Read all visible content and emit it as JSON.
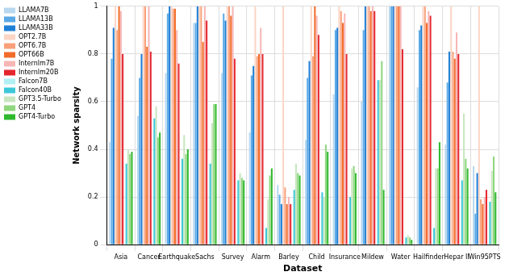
{
  "chart_data": {
    "type": "bar",
    "x_label": "Dataset",
    "y_label": "Network sparsity",
    "categories": [
      "Asia",
      "Cancer",
      "Earthquake",
      "Sachs",
      "Survey",
      "Alarm",
      "Barley",
      "Child",
      "Insurance",
      "Mildew",
      "Water",
      "Hailfinder",
      "Hepar II",
      "Win95PTS"
    ],
    "series": [
      {
        "name": "LLAMA7B",
        "color": "#b8d8f0",
        "values": [
          0.43,
          0.54,
          0.72,
          0.93,
          0.72,
          0.47,
          0.25,
          0.44,
          0.63,
          0.6,
          1.0,
          0.66,
          0.42,
          0.33
        ]
      },
      {
        "name": "LLAMA13B",
        "color": "#5aa9e6",
        "values": [
          0.78,
          0.7,
          0.97,
          0.93,
          0.97,
          0.71,
          0.21,
          0.7,
          0.9,
          0.9,
          1.0,
          0.9,
          0.68,
          0.13
        ]
      },
      {
        "name": "LLAMA33B",
        "color": "#1f7fd6",
        "values": [
          0.91,
          0.8,
          1.0,
          1.0,
          0.94,
          0.75,
          0.17,
          0.77,
          0.91,
          1.0,
          1.0,
          0.92,
          0.81,
          0.3
        ]
      },
      {
        "name": "OPT2.7B",
        "color": "#fcd5c5",
        "values": [
          1.0,
          1.0,
          1.0,
          1.0,
          1.0,
          1.0,
          1.0,
          1.0,
          1.0,
          1.0,
          1.0,
          1.0,
          1.0,
          1.0
        ]
      },
      {
        "name": "OPT6.7B",
        "color": "#f9a07a",
        "values": [
          0.9,
          1.0,
          0.99,
          1.0,
          1.0,
          0.79,
          0.24,
          0.79,
          0.98,
          1.0,
          1.0,
          1.0,
          0.81,
          0.19
        ]
      },
      {
        "name": "OPT66B",
        "color": "#f26b2a",
        "values": [
          1.0,
          0.83,
          0.99,
          0.85,
          0.96,
          0.8,
          0.17,
          1.0,
          0.93,
          0.98,
          1.0,
          0.93,
          0.78,
          0.17
        ]
      },
      {
        "name": "Internlm7B",
        "color": "#f7b6b6",
        "values": [
          0.98,
          1.0,
          0.9,
          1.0,
          1.0,
          0.91,
          0.2,
          0.96,
          0.97,
          1.0,
          1.0,
          0.98,
          0.89,
          0.2
        ]
      },
      {
        "name": "Internlm20B",
        "color": "#e4262e",
        "values": [
          0.8,
          0.81,
          0.76,
          0.94,
          0.78,
          0.8,
          0.17,
          0.88,
          0.8,
          0.98,
          0.82,
          0.96,
          0.8,
          0.23
        ]
      },
      {
        "name": "Falcon7B",
        "color": "#b0f0f4",
        "values": [
          0.0,
          0.0,
          0.0,
          0.0,
          0.0,
          0.0,
          0.0,
          0.0,
          0.0,
          0.0,
          0.0,
          0.0,
          0.0,
          0.0
        ]
      },
      {
        "name": "Falcon40B",
        "color": "#3cc8d8",
        "values": [
          0.34,
          0.53,
          0.36,
          0.34,
          0.27,
          0.07,
          0.23,
          0.22,
          0.2,
          0.69,
          0.03,
          0.07,
          0.27,
          0.18
        ]
      },
      {
        "name": "GPT3.5-Turbo",
        "color": "#c8e6c0",
        "values": [
          0.4,
          0.58,
          0.46,
          0.51,
          0.3,
          0.19,
          0.34,
          0.2,
          0.32,
          0.69,
          0.04,
          0.32,
          0.55,
          0.31
        ]
      },
      {
        "name": "GPT4",
        "color": "#8fd67f",
        "values": [
          0.38,
          0.45,
          0.38,
          0.59,
          0.28,
          0.29,
          0.3,
          0.42,
          0.33,
          0.77,
          0.03,
          0.32,
          0.36,
          0.37
        ]
      },
      {
        "name": "GPT4-Turbo",
        "color": "#2eb82e",
        "values": [
          0.39,
          0.47,
          0.4,
          0.59,
          0.27,
          0.32,
          0.29,
          0.39,
          0.3,
          0.23,
          0.02,
          0.43,
          0.32,
          0.22
        ]
      }
    ],
    "ylim": [
      0,
      1
    ],
    "yticks": [
      0,
      0.2,
      0.4,
      0.6,
      0.8,
      1
    ],
    "grid": true,
    "legend": "left"
  }
}
